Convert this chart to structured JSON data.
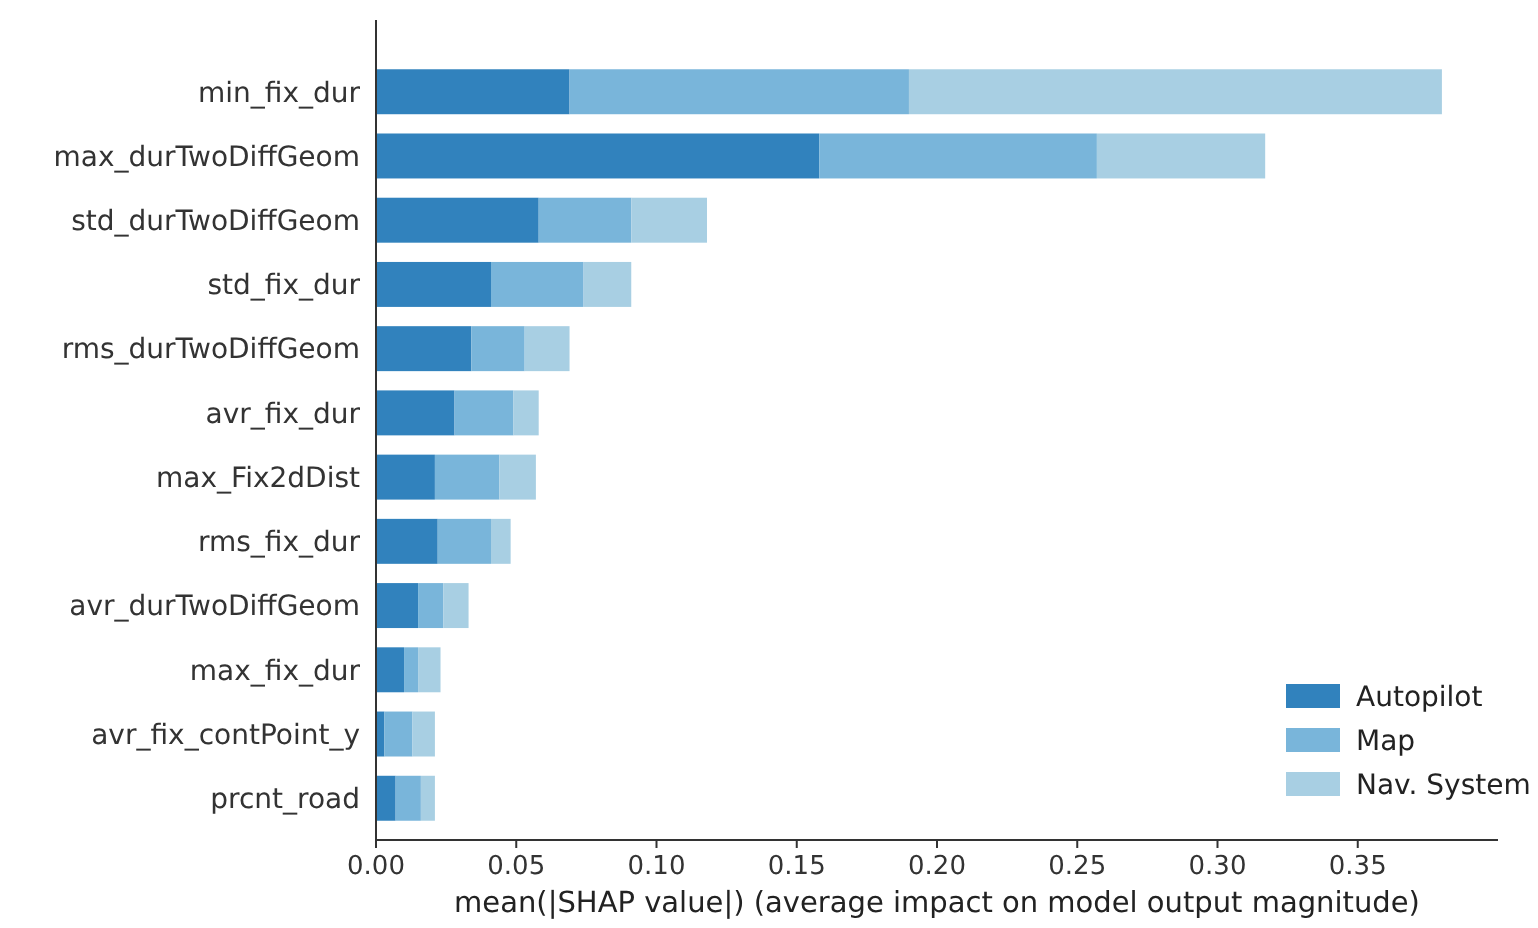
{
  "chart_data": {
    "type": "bar",
    "orientation": "horizontal",
    "stacked": true,
    "xlabel": "mean(|SHAP value|) (average impact on model output magnitude)",
    "categories": [
      "min_fix_dur",
      "max_durTwoDiffGeom",
      "std_durTwoDiffGeom",
      "std_fix_dur",
      "rms_durTwoDiffGeom",
      "avr_fix_dur",
      "max_Fix2dDist",
      "rms_fix_dur",
      "avr_durTwoDiffGeom",
      "max_fix_dur",
      "avr_fix_contPoint_y",
      "prcnt_road"
    ],
    "series": [
      {
        "name": "Autopilot",
        "color": "#3182bd",
        "values": [
          0.069,
          0.158,
          0.058,
          0.041,
          0.034,
          0.028,
          0.021,
          0.022,
          0.015,
          0.01,
          0.003,
          0.007
        ]
      },
      {
        "name": "Map",
        "color": "#79b5da",
        "values": [
          0.121,
          0.099,
          0.033,
          0.033,
          0.019,
          0.021,
          0.023,
          0.019,
          0.009,
          0.005,
          0.01,
          0.009
        ]
      },
      {
        "name": "Nav. System",
        "color": "#a8cfe3",
        "values": [
          0.19,
          0.06,
          0.027,
          0.017,
          0.016,
          0.009,
          0.013,
          0.007,
          0.009,
          0.008,
          0.008,
          0.005
        ]
      }
    ],
    "xlim": [
      0,
      0.4
    ],
    "xticks": [
      {
        "value": 0,
        "label": "0.00"
      },
      {
        "value": 0.05,
        "label": "0.05"
      },
      {
        "value": 0.1,
        "label": "0.10"
      },
      {
        "value": 0.15,
        "label": "0.15"
      },
      {
        "value": 0.2,
        "label": "0.20"
      },
      {
        "value": 0.25,
        "label": "0.25"
      },
      {
        "value": 0.3,
        "label": "0.30"
      },
      {
        "value": 0.35,
        "label": "0.35"
      }
    ],
    "legend": "bottom right",
    "grid": false
  }
}
